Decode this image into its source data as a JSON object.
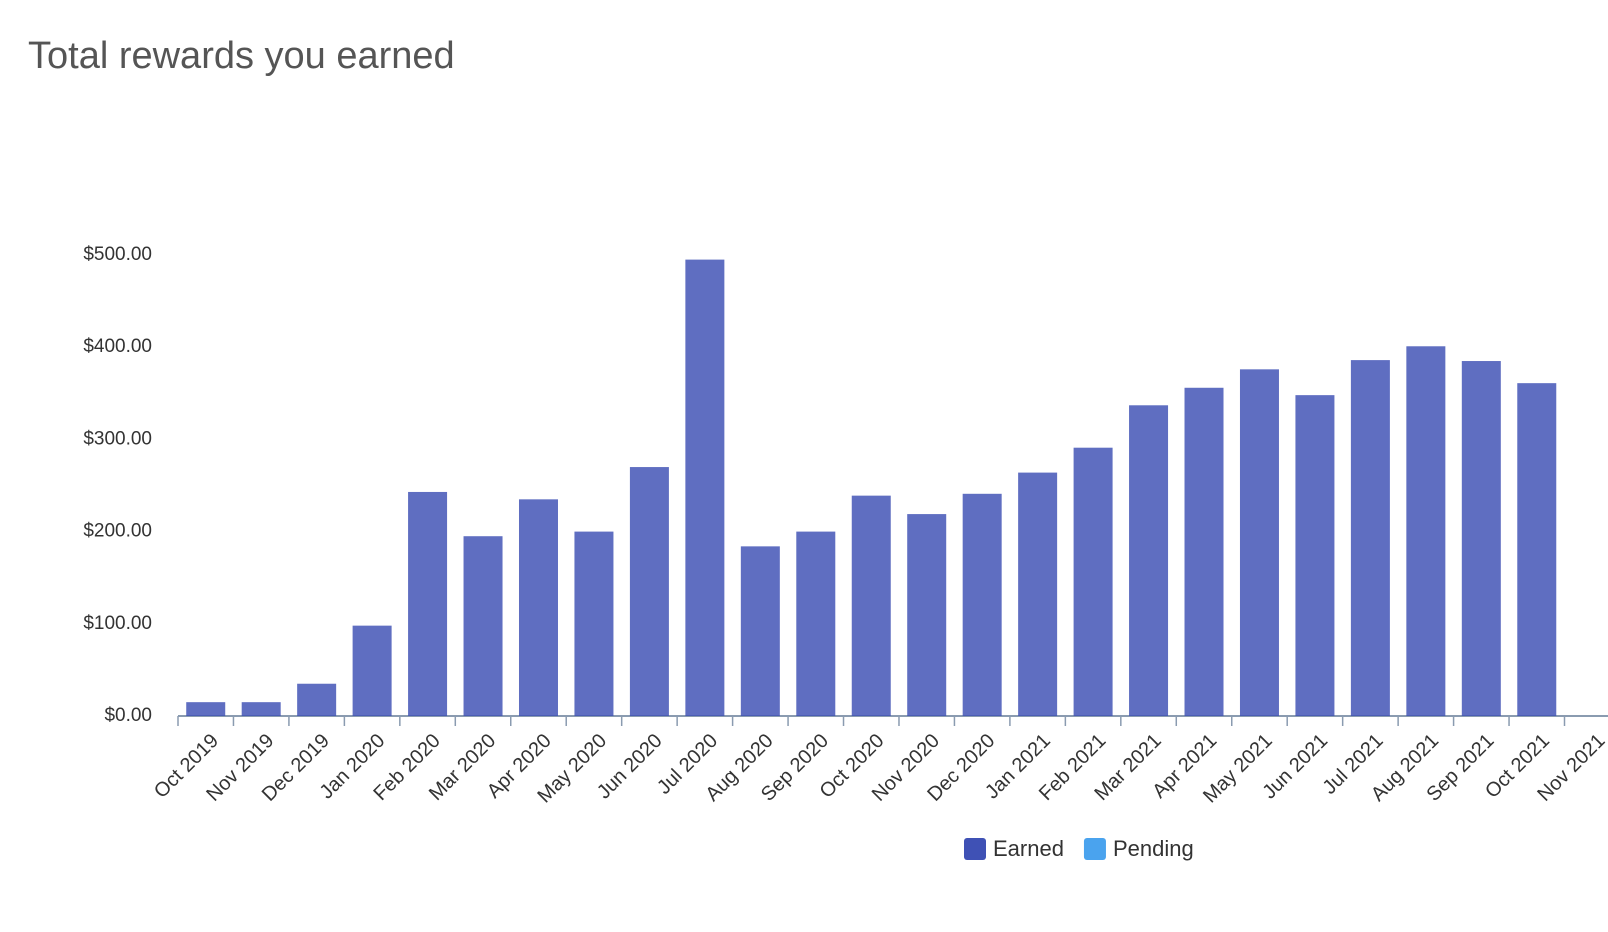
{
  "chart_data": {
    "type": "bar",
    "title": "Total rewards you earned",
    "categories": [
      "Oct 2019",
      "Nov 2019",
      "Dec 2019",
      "Jan 2020",
      "Feb 2020",
      "Mar 2020",
      "Apr 2020",
      "May 2020",
      "Jun 2020",
      "Jul 2020",
      "Aug 2020",
      "Sep 2020",
      "Oct 2020",
      "Nov 2020",
      "Dec 2020",
      "Jan 2021",
      "Feb 2021",
      "Mar 2021",
      "Apr 2021",
      "May 2021",
      "Jun 2021",
      "Jul 2021",
      "Aug 2021",
      "Sep 2021",
      "Oct 2021",
      "Nov 2021"
    ],
    "series": [
      {
        "name": "Earned",
        "color": "#3f51b5",
        "values": [
          15,
          15,
          35,
          98,
          243,
          195,
          235,
          200,
          270,
          495,
          184,
          200,
          239,
          219,
          241,
          264,
          291,
          337,
          356,
          376,
          348,
          386,
          401,
          385,
          361,
          null
        ]
      },
      {
        "name": "Pending",
        "color": "#4aa3ee",
        "values": [
          null,
          null,
          null,
          null,
          null,
          null,
          null,
          null,
          null,
          null,
          null,
          null,
          null,
          null,
          null,
          null,
          null,
          null,
          null,
          null,
          null,
          null,
          null,
          null,
          null,
          null
        ]
      }
    ],
    "ylim": [
      0,
      500
    ],
    "yticks": [
      {
        "value": 0,
        "label": "$0.00"
      },
      {
        "value": 100,
        "label": "$100.00"
      },
      {
        "value": 200,
        "label": "$200.00"
      },
      {
        "value": 300,
        "label": "$300.00"
      },
      {
        "value": 400,
        "label": "$400.00"
      },
      {
        "value": 500,
        "label": "$500.00"
      }
    ],
    "legend": "bottom"
  }
}
